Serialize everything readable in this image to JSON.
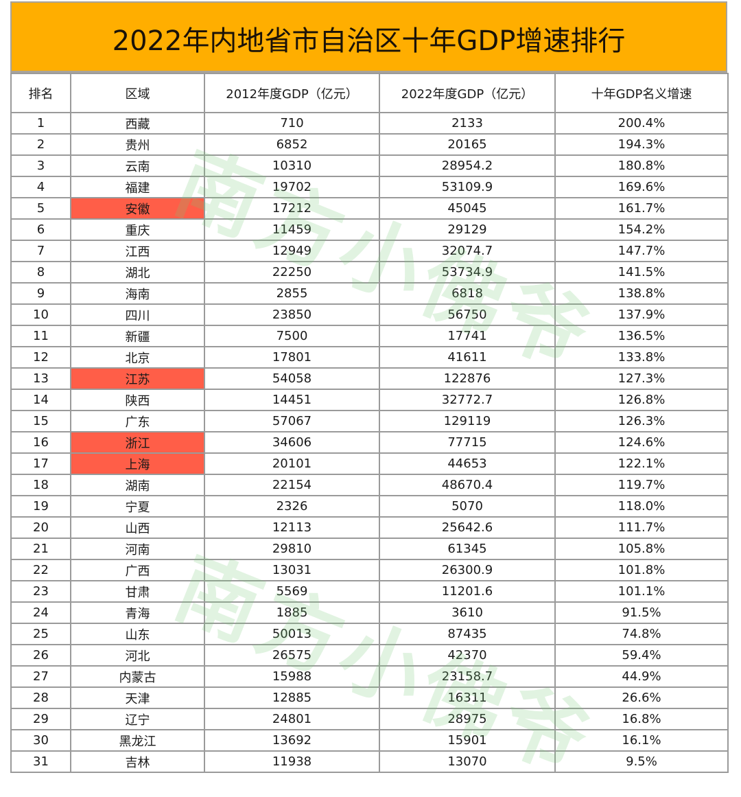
{
  "title": "2022年内地省市自治区十年GDP增速排行",
  "colors": {
    "title_band": "#FFAE00",
    "highlight": "#FF5E48",
    "grid": "#9a9a9a",
    "watermark": "#78C878"
  },
  "watermark": "南方小佛爷",
  "headers": {
    "rank": "排名",
    "region": "区域",
    "gdp_2012": "2012年度GDP（亿元）",
    "gdp_2022": "2022年度GDP（亿元）",
    "growth": "十年GDP名义增速"
  },
  "rows": [
    {
      "rank": "1",
      "region": "西藏",
      "gdp_2012": "710",
      "gdp_2022": "2133",
      "growth": "200.4%",
      "highlight": false
    },
    {
      "rank": "2",
      "region": "贵州",
      "gdp_2012": "6852",
      "gdp_2022": "20165",
      "growth": "194.3%",
      "highlight": false
    },
    {
      "rank": "3",
      "region": "云南",
      "gdp_2012": "10310",
      "gdp_2022": "28954.2",
      "growth": "180.8%",
      "highlight": false
    },
    {
      "rank": "4",
      "region": "福建",
      "gdp_2012": "19702",
      "gdp_2022": "53109.9",
      "growth": "169.6%",
      "highlight": false
    },
    {
      "rank": "5",
      "region": "安徽",
      "gdp_2012": "17212",
      "gdp_2022": "45045",
      "growth": "161.7%",
      "highlight": true
    },
    {
      "rank": "6",
      "region": "重庆",
      "gdp_2012": "11459",
      "gdp_2022": "29129",
      "growth": "154.2%",
      "highlight": false
    },
    {
      "rank": "7",
      "region": "江西",
      "gdp_2012": "12949",
      "gdp_2022": "32074.7",
      "growth": "147.7%",
      "highlight": false
    },
    {
      "rank": "8",
      "region": "湖北",
      "gdp_2012": "22250",
      "gdp_2022": "53734.9",
      "growth": "141.5%",
      "highlight": false
    },
    {
      "rank": "9",
      "region": "海南",
      "gdp_2012": "2855",
      "gdp_2022": "6818",
      "growth": "138.8%",
      "highlight": false
    },
    {
      "rank": "10",
      "region": "四川",
      "gdp_2012": "23850",
      "gdp_2022": "56750",
      "growth": "137.9%",
      "highlight": false
    },
    {
      "rank": "11",
      "region": "新疆",
      "gdp_2012": "7500",
      "gdp_2022": "17741",
      "growth": "136.5%",
      "highlight": false
    },
    {
      "rank": "12",
      "region": "北京",
      "gdp_2012": "17801",
      "gdp_2022": "41611",
      "growth": "133.8%",
      "highlight": false
    },
    {
      "rank": "13",
      "region": "江苏",
      "gdp_2012": "54058",
      "gdp_2022": "122876",
      "growth": "127.3%",
      "highlight": true
    },
    {
      "rank": "14",
      "region": "陕西",
      "gdp_2012": "14451",
      "gdp_2022": "32772.7",
      "growth": "126.8%",
      "highlight": false
    },
    {
      "rank": "15",
      "region": "广东",
      "gdp_2012": "57067",
      "gdp_2022": "129119",
      "growth": "126.3%",
      "highlight": false
    },
    {
      "rank": "16",
      "region": "浙江",
      "gdp_2012": "34606",
      "gdp_2022": "77715",
      "growth": "124.6%",
      "highlight": true
    },
    {
      "rank": "17",
      "region": "上海",
      "gdp_2012": "20101",
      "gdp_2022": "44653",
      "growth": "122.1%",
      "highlight": true
    },
    {
      "rank": "18",
      "region": "湖南",
      "gdp_2012": "22154",
      "gdp_2022": "48670.4",
      "growth": "119.7%",
      "highlight": false
    },
    {
      "rank": "19",
      "region": "宁夏",
      "gdp_2012": "2326",
      "gdp_2022": "5070",
      "growth": "118.0%",
      "highlight": false
    },
    {
      "rank": "20",
      "region": "山西",
      "gdp_2012": "12113",
      "gdp_2022": "25642.6",
      "growth": "111.7%",
      "highlight": false
    },
    {
      "rank": "21",
      "region": "河南",
      "gdp_2012": "29810",
      "gdp_2022": "61345",
      "growth": "105.8%",
      "highlight": false
    },
    {
      "rank": "22",
      "region": "广西",
      "gdp_2012": "13031",
      "gdp_2022": "26300.9",
      "growth": "101.8%",
      "highlight": false
    },
    {
      "rank": "23",
      "region": "甘肃",
      "gdp_2012": "5569",
      "gdp_2022": "11201.6",
      "growth": "101.1%",
      "highlight": false
    },
    {
      "rank": "24",
      "region": "青海",
      "gdp_2012": "1885",
      "gdp_2022": "3610",
      "growth": "91.5%",
      "highlight": false
    },
    {
      "rank": "25",
      "region": "山东",
      "gdp_2012": "50013",
      "gdp_2022": "87435",
      "growth": "74.8%",
      "highlight": false
    },
    {
      "rank": "26",
      "region": "河北",
      "gdp_2012": "26575",
      "gdp_2022": "42370",
      "growth": "59.4%",
      "highlight": false
    },
    {
      "rank": "27",
      "region": "内蒙古",
      "gdp_2012": "15988",
      "gdp_2022": "23158.7",
      "growth": "44.9%",
      "highlight": false
    },
    {
      "rank": "28",
      "region": "天津",
      "gdp_2012": "12885",
      "gdp_2022": "16311",
      "growth": "26.6%",
      "highlight": false
    },
    {
      "rank": "29",
      "region": "辽宁",
      "gdp_2012": "24801",
      "gdp_2022": "28975",
      "growth": "16.8%",
      "highlight": false
    },
    {
      "rank": "30",
      "region": "黑龙江",
      "gdp_2012": "13692",
      "gdp_2022": "15901",
      "growth": "16.1%",
      "highlight": false
    },
    {
      "rank": "31",
      "region": "吉林",
      "gdp_2012": "11938",
      "gdp_2022": "13070",
      "growth": "9.5%",
      "highlight": false
    }
  ]
}
